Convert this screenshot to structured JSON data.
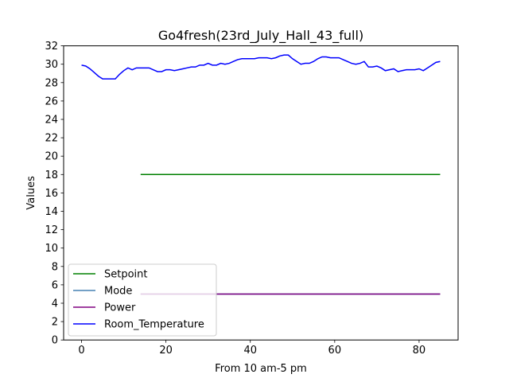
{
  "chart_data": {
    "type": "line",
    "title": "Go4fresh(23rd_July_Hall_43_full)",
    "xlabel": "From 10 am-5 pm",
    "ylabel": "Values",
    "xlim": [
      -4.25,
      89.25
    ],
    "ylim": [
      0,
      32
    ],
    "xticks": [
      0,
      20,
      40,
      60,
      80
    ],
    "yticks": [
      0,
      2,
      4,
      6,
      8,
      10,
      12,
      14,
      16,
      18,
      20,
      22,
      24,
      26,
      28,
      30,
      32
    ],
    "grid": false,
    "legend_position": "lower-left",
    "series": [
      {
        "name": "Setpoint",
        "color": "#008000",
        "points": [
          [
            14,
            18
          ],
          [
            85,
            18
          ]
        ]
      },
      {
        "name": "Mode",
        "color": "#4682b4",
        "points": [
          [
            14,
            5
          ],
          [
            85,
            5
          ]
        ]
      },
      {
        "name": "Power",
        "color": "#800080",
        "points": [
          [
            14,
            5
          ],
          [
            85,
            5
          ]
        ]
      },
      {
        "name": "Room_Temperature",
        "color": "#0000ff",
        "points": [
          [
            0,
            29.9
          ],
          [
            1,
            29.8
          ],
          [
            2,
            29.5
          ],
          [
            3,
            29.1
          ],
          [
            4,
            28.7
          ],
          [
            5,
            28.4
          ],
          [
            6,
            28.4
          ],
          [
            7,
            28.4
          ],
          [
            8,
            28.4
          ],
          [
            9,
            28.9
          ],
          [
            10,
            29.3
          ],
          [
            11,
            29.6
          ],
          [
            12,
            29.4
          ],
          [
            13,
            29.6
          ],
          [
            14,
            29.6
          ],
          [
            15,
            29.6
          ],
          [
            16,
            29.6
          ],
          [
            17,
            29.4
          ],
          [
            18,
            29.2
          ],
          [
            19,
            29.2
          ],
          [
            20,
            29.4
          ],
          [
            21,
            29.4
          ],
          [
            22,
            29.3
          ],
          [
            23,
            29.4
          ],
          [
            24,
            29.5
          ],
          [
            25,
            29.6
          ],
          [
            26,
            29.7
          ],
          [
            27,
            29.7
          ],
          [
            28,
            29.9
          ],
          [
            29,
            29.9
          ],
          [
            30,
            30.1
          ],
          [
            31,
            29.9
          ],
          [
            32,
            29.9
          ],
          [
            33,
            30.1
          ],
          [
            34,
            30.0
          ],
          [
            35,
            30.1
          ],
          [
            36,
            30.3
          ],
          [
            37,
            30.5
          ],
          [
            38,
            30.6
          ],
          [
            39,
            30.6
          ],
          [
            40,
            30.6
          ],
          [
            41,
            30.6
          ],
          [
            42,
            30.7
          ],
          [
            43,
            30.7
          ],
          [
            44,
            30.7
          ],
          [
            45,
            30.6
          ],
          [
            46,
            30.7
          ],
          [
            47,
            30.9
          ],
          [
            48,
            31.0
          ],
          [
            49,
            31.0
          ],
          [
            50,
            30.6
          ],
          [
            51,
            30.3
          ],
          [
            52,
            30.0
          ],
          [
            53,
            30.1
          ],
          [
            54,
            30.1
          ],
          [
            55,
            30.3
          ],
          [
            56,
            30.6
          ],
          [
            57,
            30.8
          ],
          [
            58,
            30.8
          ],
          [
            59,
            30.7
          ],
          [
            60,
            30.7
          ],
          [
            61,
            30.7
          ],
          [
            62,
            30.5
          ],
          [
            63,
            30.3
          ],
          [
            64,
            30.1
          ],
          [
            65,
            30.0
          ],
          [
            66,
            30.1
          ],
          [
            67,
            30.3
          ],
          [
            68,
            29.7
          ],
          [
            69,
            29.7
          ],
          [
            70,
            29.8
          ],
          [
            71,
            29.6
          ],
          [
            72,
            29.3
          ],
          [
            73,
            29.4
          ],
          [
            74,
            29.5
          ],
          [
            75,
            29.2
          ],
          [
            76,
            29.3
          ],
          [
            77,
            29.4
          ],
          [
            78,
            29.4
          ],
          [
            79,
            29.4
          ],
          [
            80,
            29.5
          ],
          [
            81,
            29.3
          ],
          [
            82,
            29.6
          ],
          [
            83,
            29.9
          ],
          [
            84,
            30.2
          ],
          [
            85,
            30.3
          ]
        ]
      }
    ]
  }
}
